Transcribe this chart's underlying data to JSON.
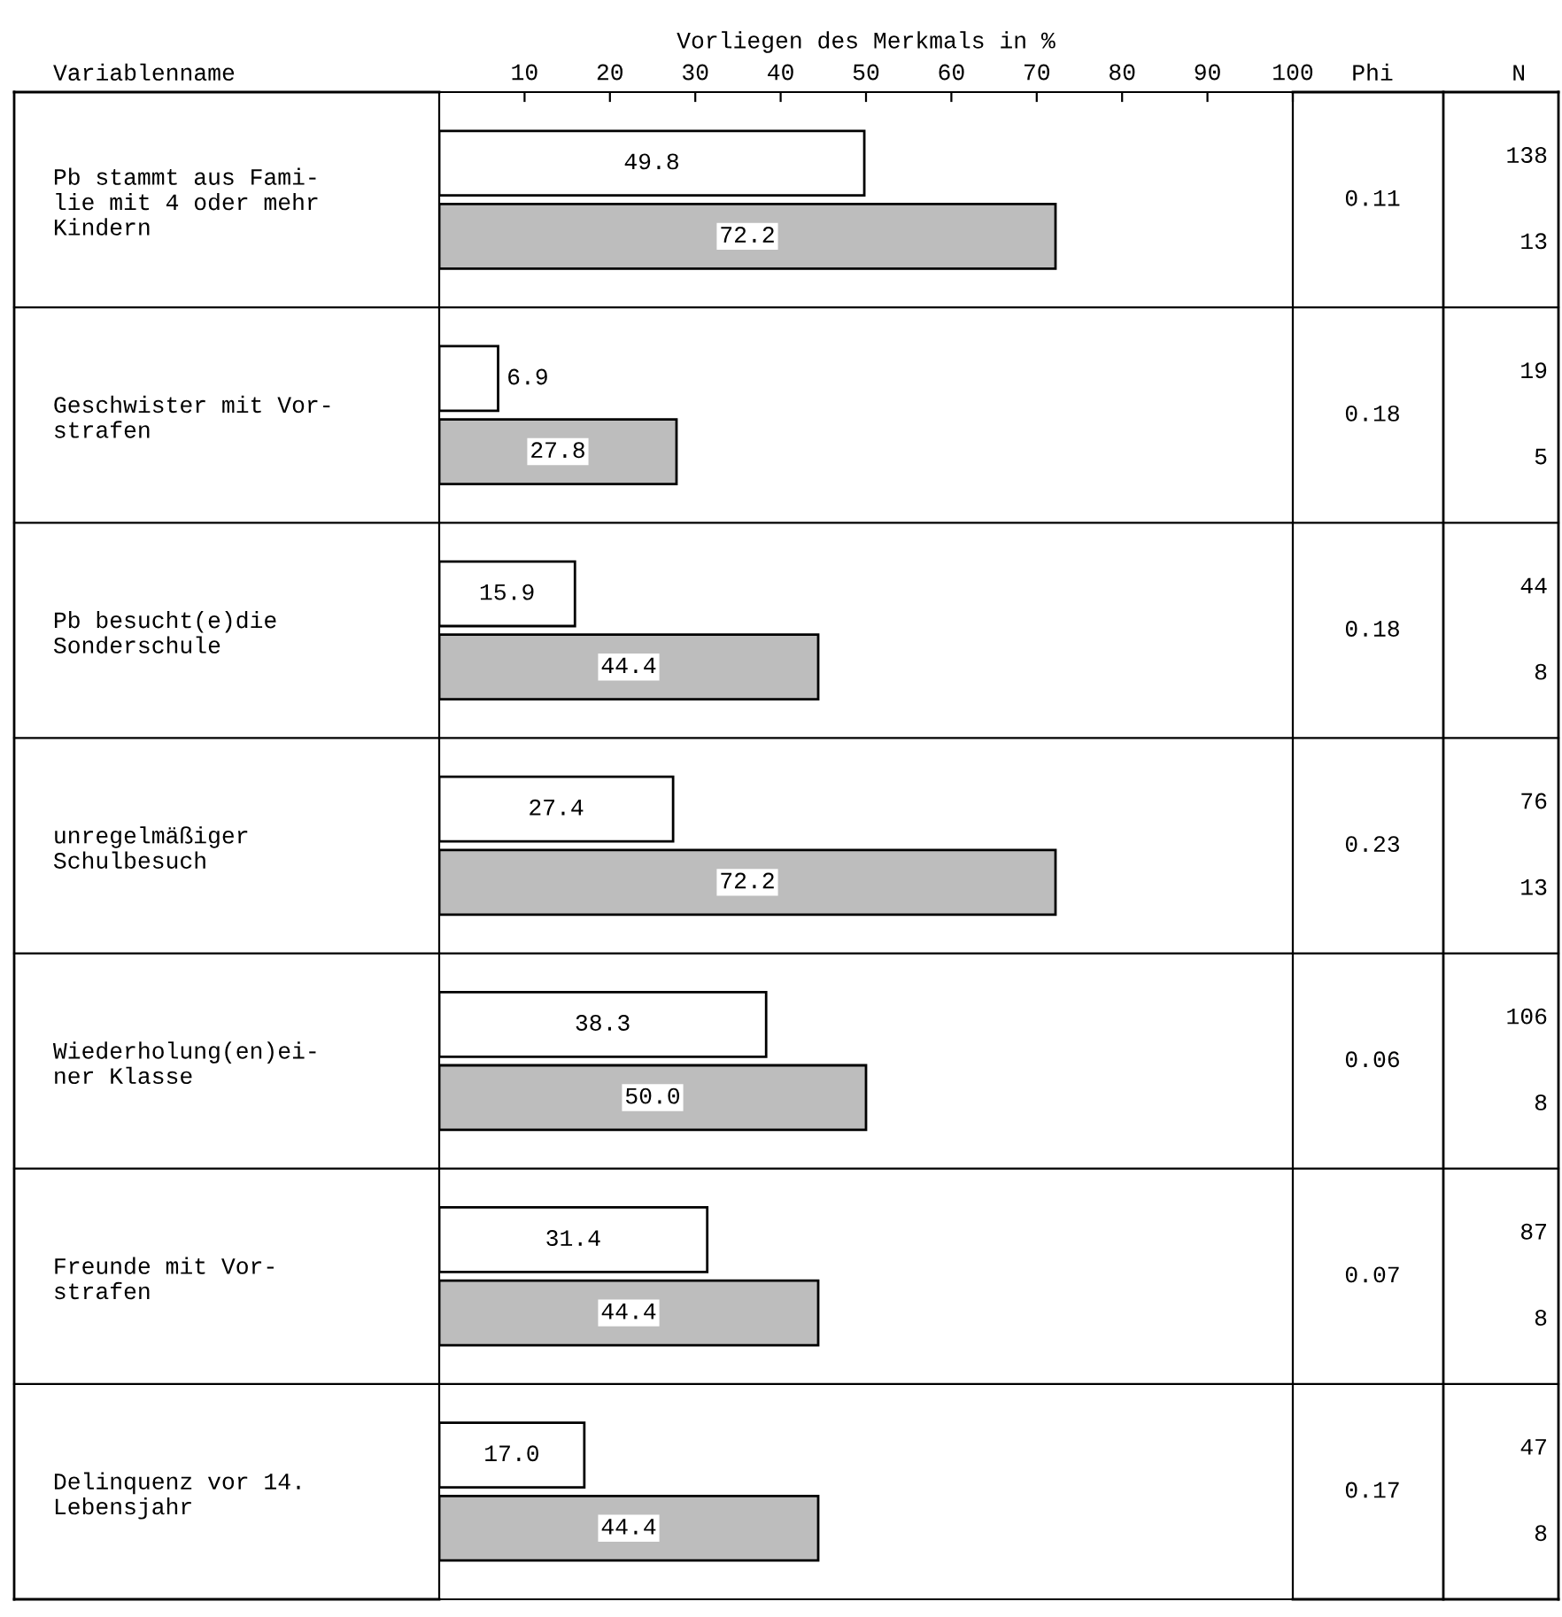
{
  "chart_data": {
    "type": "bar",
    "orientation": "horizontal",
    "xlabel": "Vorliegen des Merkmals in %",
    "ylabel": "Variablenname",
    "categories": [
      "Pb stammt aus Fami-\nlie mit 4 oder mehr\nKindern",
      "Geschwister mit Vor-\nstrafen",
      "Pb besucht(e)die\nSonderschule",
      "unregelmäßiger\nSchulbesuch",
      "Wiederholung(en)ei-\nner Klasse",
      "Freunde mit Vor-\nstrafen",
      "Delinquenz vor 14.\nLebensjahr"
    ],
    "series": [
      {
        "color": "#ffffff",
        "values": [
          49.8,
          6.9,
          15.9,
          27.4,
          38.3,
          31.4,
          17.0
        ],
        "value_labels": [
          "49.8",
          "6.9",
          "15.9",
          "27.4",
          "38.3",
          "31.4",
          "17.0"
        ]
      },
      {
        "color": "#bdbdbd",
        "values": [
          72.2,
          27.8,
          44.4,
          72.2,
          50.0,
          44.4,
          44.4
        ],
        "value_labels": [
          "72.2",
          "27.8",
          "44.4",
          "72.2",
          "50.0",
          "44.4",
          "44.4"
        ]
      }
    ],
    "xlim": [
      0,
      100
    ],
    "xticks": [
      10,
      20,
      30,
      40,
      50,
      60,
      70,
      80,
      90,
      100
    ],
    "grid": false,
    "legend": false,
    "annotations": [
      "Phi",
      "N",
      "0.11",
      "138",
      "13",
      "0.18",
      "19",
      "5",
      "0.18",
      "44",
      "8",
      "0.23",
      "76",
      "13",
      "0.06",
      "106",
      "8",
      "0.07",
      "87",
      "8",
      "0.17",
      "47",
      "8"
    ]
  }
}
